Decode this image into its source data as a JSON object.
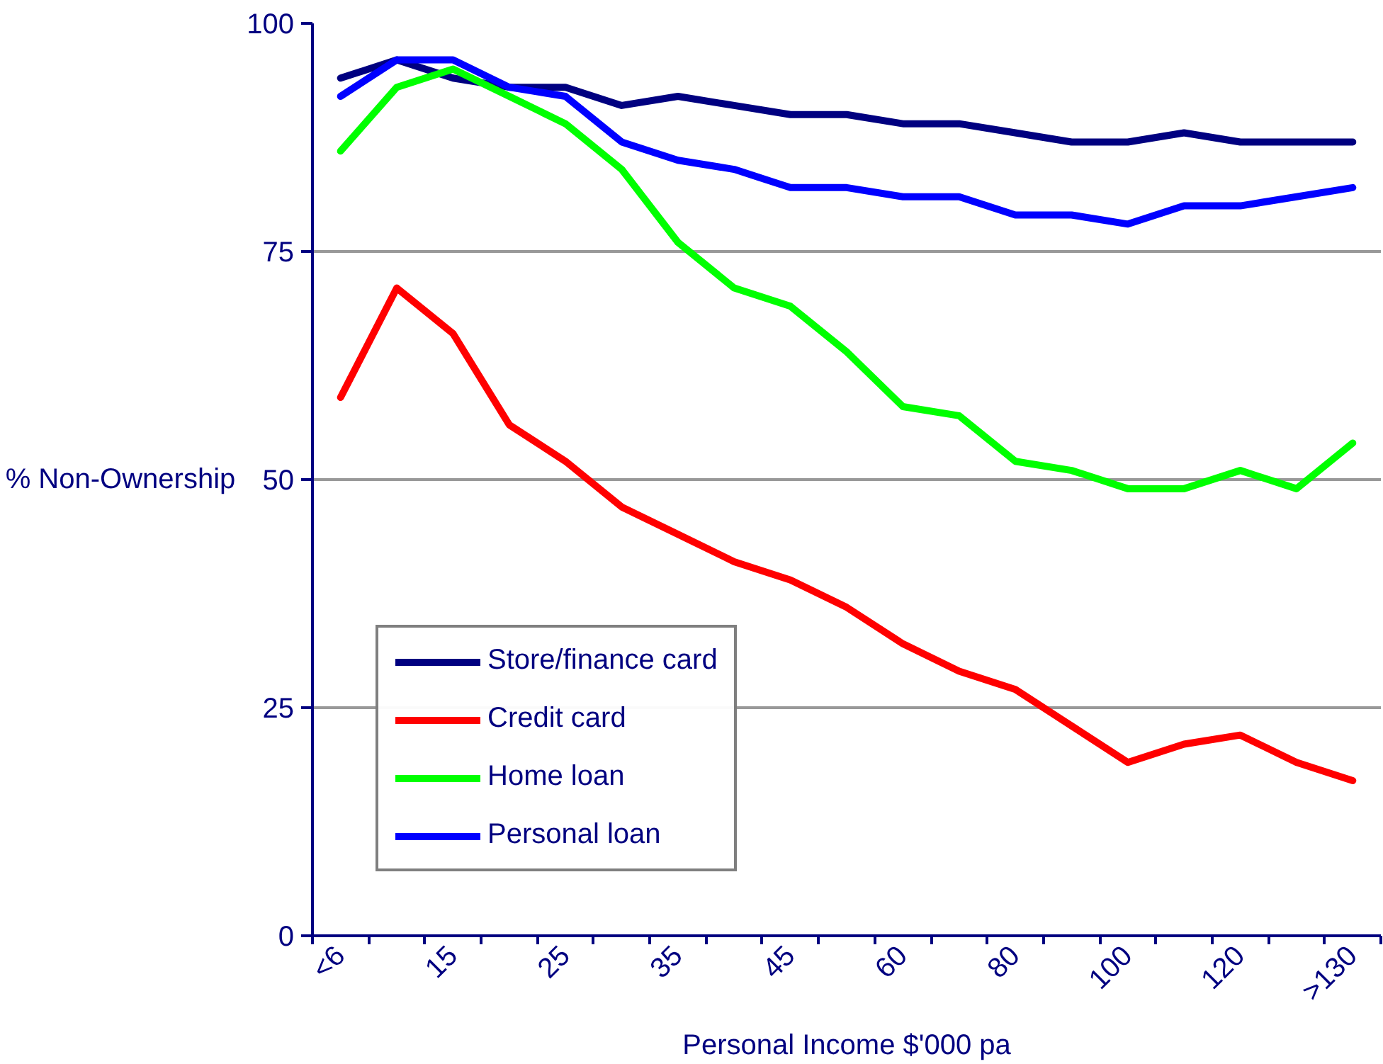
{
  "chart_data": {
    "type": "line",
    "xlabel": "Personal Income $'000 pa",
    "ylabel": "% Non-Ownership",
    "categories": [
      "<6",
      null,
      "15",
      null,
      "25",
      null,
      "35",
      null,
      "45",
      null,
      "60",
      null,
      "80",
      null,
      "100",
      null,
      "120",
      null,
      ">130"
    ],
    "series": [
      {
        "name": "Store/finance card",
        "color": "#000080",
        "values": [
          94,
          96,
          94,
          93,
          93,
          91,
          92,
          91,
          90,
          90,
          89,
          89,
          88,
          87,
          87,
          88,
          87,
          87,
          87
        ]
      },
      {
        "name": "Credit card",
        "color": "#ff0000",
        "values": [
          59,
          71,
          66,
          56,
          52,
          47,
          44,
          41,
          39,
          36,
          32,
          29,
          27,
          23,
          19,
          21,
          22,
          19,
          17
        ]
      },
      {
        "name": "Home loan",
        "color": "#00ff00",
        "values": [
          86,
          93,
          95,
          92,
          89,
          84,
          76,
          71,
          69,
          64,
          58,
          57,
          52,
          51,
          49,
          49,
          51,
          49,
          54
        ]
      },
      {
        "name": "Personal loan",
        "color": "#0000ff",
        "values": [
          92,
          96,
          96,
          93,
          92,
          87,
          85,
          84,
          82,
          82,
          81,
          81,
          79,
          79,
          78,
          80,
          80,
          81,
          82
        ]
      }
    ],
    "ylim": [
      0,
      100
    ],
    "yticks": [
      0,
      25,
      50,
      75,
      100
    ],
    "grid": "y",
    "legend": "bottom left",
    "line_style": "solid",
    "marker": "none"
  }
}
